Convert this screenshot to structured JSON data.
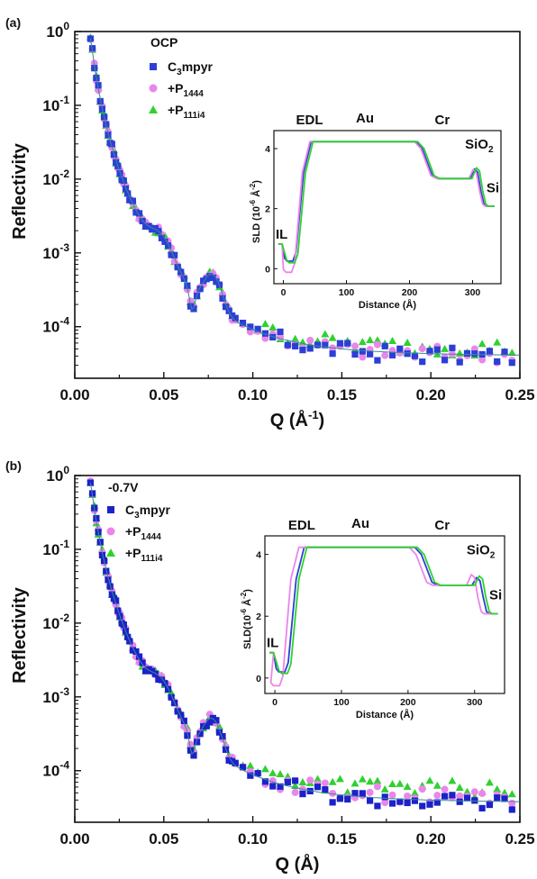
{
  "colors": {
    "c3mpyr": "#2b3fd6",
    "p1444": "#ea86ea",
    "p111i4": "#2fd12f",
    "fit_line": "#3a8a9a"
  },
  "chart_data": [
    {
      "type": "scatter",
      "panel": "(a)",
      "condition": "OCP",
      "xlabel": "Q (Å",
      "xlabel_sup": "-1",
      "xlabel_end": ")",
      "ylabel": "Reflectivity",
      "xlim": [
        0.0,
        0.25
      ],
      "ylim": [
        2e-05,
        1
      ],
      "yscale": "log",
      "x_ticks": [
        "0.00",
        "0.05",
        "0.10",
        "0.15",
        "0.20",
        "0.25"
      ],
      "y_ticks": [
        {
          "base": "10",
          "exp": "0"
        },
        {
          "base": "10",
          "exp": "-1"
        },
        {
          "base": "10",
          "exp": "-2"
        },
        {
          "base": "10",
          "exp": "-3"
        },
        {
          "base": "10",
          "exp": "-4"
        }
      ],
      "legend": [
        {
          "main": "C",
          "sub": "3",
          "rest": "mpyr",
          "color": "#2b3fd6",
          "marker": "square"
        },
        {
          "main": "+P",
          "sub": "1444",
          "rest": "",
          "color": "#ea86ea",
          "marker": "circle"
        },
        {
          "main": "+P",
          "sub": "111i4",
          "rest": "",
          "color": "#2fd12f",
          "marker": "triangle"
        }
      ],
      "inset": {
        "xlabel": "Distance (Å)",
        "ylabel": "SLD (10",
        "ylabel_sup": "-6",
        "ylabel_mid": " Å",
        "ylabel_sup2": "-2",
        "ylabel_end": ")",
        "xlim": [
          -15,
          345
        ],
        "ylim": [
          -0.5,
          4.6
        ],
        "x_ticks": [
          "0",
          "100",
          "200",
          "300"
        ],
        "y_ticks": [
          "0",
          "2",
          "4"
        ],
        "regions": {
          "il": "IL",
          "edl": "EDL",
          "au": "Au",
          "cr": "Cr",
          "sio": "SiO",
          "sio_sub": "2",
          "si": "Si"
        },
        "series": [
          {
            "name": "C3mpyr",
            "color": "#2b3fd6",
            "shift": 0,
            "bottom": 0.25,
            "sio2": 3.32
          },
          {
            "name": "+P1444",
            "color": "#ea86ea",
            "shift": -2,
            "bottom": -0.12,
            "sio2": 3.3
          },
          {
            "name": "+P111i4",
            "color": "#2fd12f",
            "shift": 3,
            "bottom": 0.2,
            "sio2": 3.36
          }
        ]
      },
      "series_params": {
        "tail": [
          3.8e-05,
          4e-05,
          5e-05
        ]
      }
    },
    {
      "type": "scatter",
      "panel": "(b)",
      "condition": "-0.7V",
      "xlabel": "Q (Å)",
      "xlabel_sup": "",
      "xlabel_end": "",
      "ylabel": "Reflectivity",
      "xlim": [
        0.0,
        0.25
      ],
      "ylim": [
        2e-05,
        1
      ],
      "yscale": "log",
      "x_ticks": [
        "0.00",
        "0.05",
        "0.10",
        "0.15",
        "0.20",
        "0.25"
      ],
      "y_ticks": [
        {
          "base": "10",
          "exp": "0"
        },
        {
          "base": "10",
          "exp": "-1"
        },
        {
          "base": "10",
          "exp": "-2"
        },
        {
          "base": "10",
          "exp": "-3"
        },
        {
          "base": "10",
          "exp": "-4"
        }
      ],
      "legend": [
        {
          "main": "C",
          "sub": "3",
          "rest": "mpyr",
          "color": "#1a22c8",
          "marker": "square"
        },
        {
          "main": "+P",
          "sub": "1444",
          "rest": "",
          "color": "#ea86ea",
          "marker": "circle"
        },
        {
          "main": "+P",
          "sub": "111i4",
          "rest": "",
          "color": "#2fd12f",
          "marker": "triangle"
        }
      ],
      "inset": {
        "xlabel": "Distance (Å)",
        "ylabel": "SLD(10",
        "ylabel_sup": "-6",
        "ylabel_mid": " Å",
        "ylabel_sup2": "-2",
        "ylabel_end": ")",
        "xlim": [
          -15,
          345
        ],
        "ylim": [
          -0.5,
          4.6
        ],
        "x_ticks": [
          "0",
          "100",
          "200",
          "300"
        ],
        "y_ticks": [
          "0",
          "2",
          "4"
        ],
        "regions": {
          "il": "IL",
          "edl": "EDL",
          "au": "Au",
          "cr": "Cr",
          "sio": "SiO",
          "sio_sub": "2",
          "si": "Si"
        },
        "series": [
          {
            "name": "C3mpyr",
            "color": "#2b3fd6",
            "shift": 0,
            "bottom": 0.2,
            "sio2": 3.25
          },
          {
            "name": "+P1444",
            "color": "#ea86ea",
            "shift": -8,
            "bottom": -0.25,
            "sio2": 3.35
          },
          {
            "name": "+P111i4",
            "color": "#2fd12f",
            "shift": 4,
            "bottom": 0.15,
            "sio2": 3.3
          }
        ]
      },
      "series_params": {
        "tail": [
          3.5e-05,
          4.2e-05,
          5.5e-05
        ]
      }
    }
  ]
}
